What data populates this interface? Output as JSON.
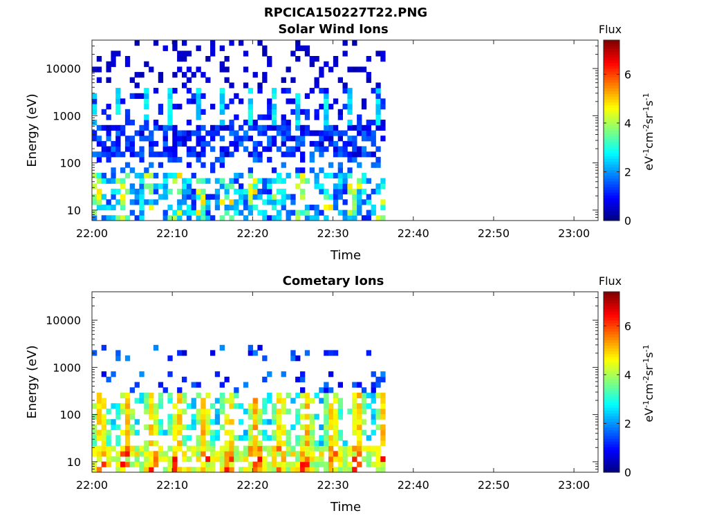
{
  "figure_title": "RPCICA150227T22.PNG",
  "chart_data": [
    {
      "type": "heatmap",
      "title": "Solar Wind Ions",
      "xlabel": "Time",
      "ylabel": "Energy (eV)",
      "x_ticks": [
        "22:00",
        "22:10",
        "22:20",
        "22:30",
        "22:40",
        "22:50",
        "23:00"
      ],
      "x_range_minutes": [
        0,
        63
      ],
      "data_end_minute": 36.5,
      "y_scale": "log",
      "y_range": [
        6,
        40000
      ],
      "y_ticks": [
        10,
        100,
        1000,
        10000
      ],
      "y_tick_labels": [
        "10",
        "100",
        "1000",
        "10000"
      ],
      "colorbar": {
        "title": "Flux",
        "label": "eV-1cm-2sr-1s-1",
        "range": [
          0,
          7.4
        ],
        "ticks": [
          0,
          2,
          4,
          6
        ],
        "tick_labels": [
          "0",
          "2",
          "4",
          "6"
        ],
        "colormap": "jet"
      },
      "features": {
        "sweep_period_minutes": 3.2,
        "low_energy_band_eV": [
          6,
          60
        ],
        "low_energy_level": 3.0,
        "broad_band_eV": [
          150,
          600
        ],
        "broad_band_level": 1.0,
        "sparse_high_energy_level": 0.6
      }
    },
    {
      "type": "heatmap",
      "title": "Cometary Ions",
      "xlabel": "Time",
      "ylabel": "Energy (eV)",
      "x_ticks": [
        "22:00",
        "22:10",
        "22:20",
        "22:30",
        "22:40",
        "22:50",
        "23:00"
      ],
      "x_range_minutes": [
        0,
        63
      ],
      "data_end_minute": 36.5,
      "y_scale": "log",
      "y_range": [
        6,
        40000
      ],
      "y_ticks": [
        10,
        100,
        1000,
        10000
      ],
      "y_tick_labels": [
        "10",
        "100",
        "1000",
        "10000"
      ],
      "colorbar": {
        "title": "Flux",
        "label": "eV-1cm-2sr-1s-1",
        "range": [
          0,
          7.4
        ],
        "ticks": [
          0,
          2,
          4,
          6
        ],
        "tick_labels": [
          "0",
          "2",
          "4",
          "6"
        ],
        "colormap": "jet"
      },
      "features": {
        "sweep_period_minutes": 3.2,
        "peak_energy_eV": 15,
        "peak_level": 6.0,
        "mid_band_eV": [
          20,
          300
        ],
        "sparse_high_energy_eV": [
          1500,
          3000
        ]
      }
    }
  ]
}
